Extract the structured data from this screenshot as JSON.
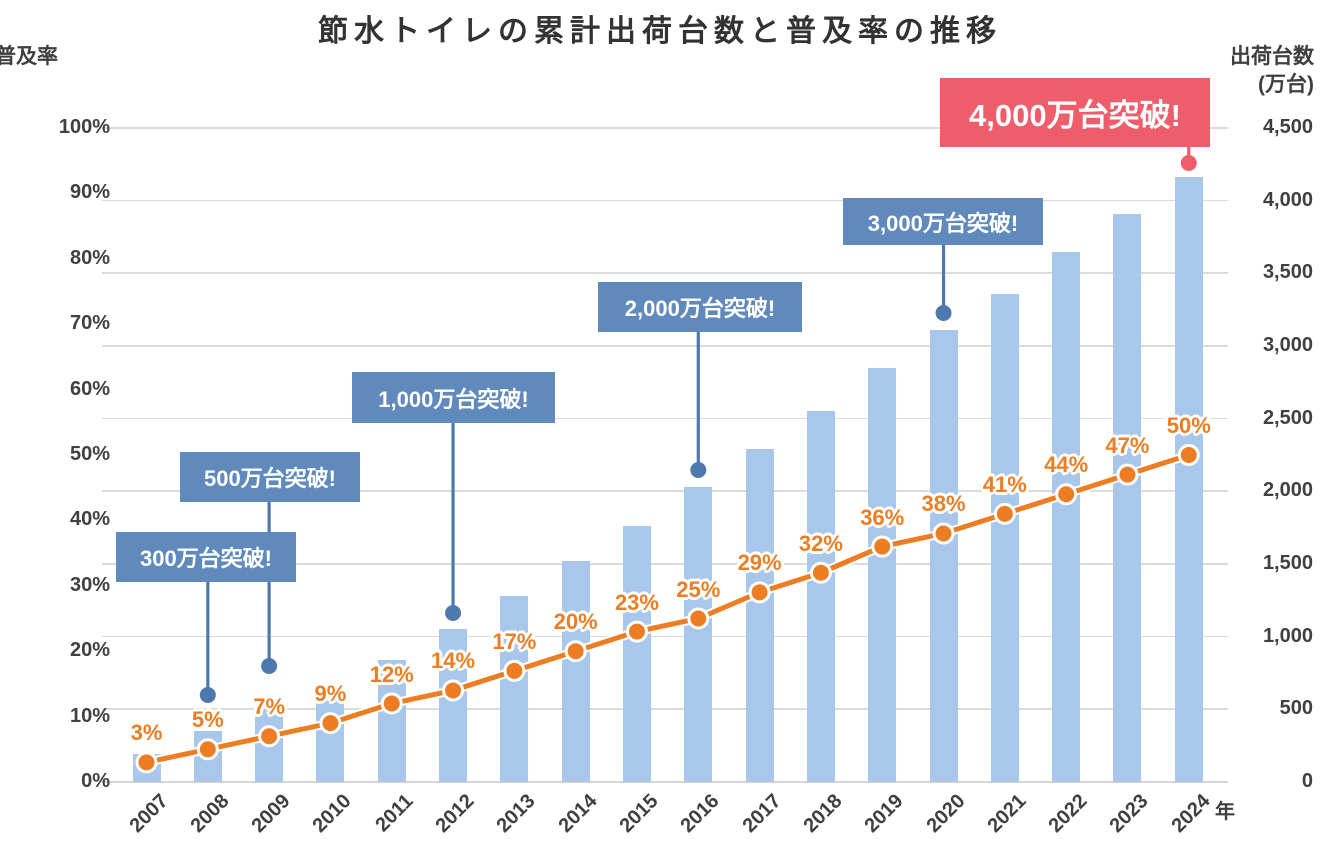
{
  "title": "節水トイレの累計出荷台数と普及率の推移",
  "colors": {
    "bar": "#a9c7ea",
    "line": "#ed7d22",
    "data_label": "#ed7d22",
    "callout_blue": "#6089bc",
    "callout_connector": "#4e79ae",
    "callout_red": "#ee5d6c",
    "grid": "#dbdbdb",
    "text": "#3f3f3f"
  },
  "chart_data": {
    "type": "bar",
    "combo": "bar+line",
    "title": "節水トイレの累計出荷台数と普及率の推移",
    "categories": [
      "2007",
      "2008",
      "2009",
      "2010",
      "2011",
      "2012",
      "2013",
      "2014",
      "2015",
      "2016",
      "2017",
      "2018",
      "2019",
      "2020",
      "2021",
      "2022",
      "2023",
      "2024"
    ],
    "series": [
      {
        "name": "累計出荷台数",
        "type": "bar",
        "axis": "right",
        "values": [
          190,
          350,
          500,
          650,
          840,
          1050,
          1280,
          1520,
          1760,
          2030,
          2290,
          2550,
          2850,
          3110,
          3360,
          3650,
          3910,
          4160
        ],
        "color": "#a9c7ea"
      },
      {
        "name": "普及率",
        "type": "line",
        "axis": "left",
        "values": [
          3,
          5,
          7,
          9,
          12,
          14,
          17,
          20,
          23,
          25,
          29,
          32,
          36,
          38,
          41,
          44,
          47,
          50
        ],
        "labels": [
          "3%",
          "5%",
          "7%",
          "9%",
          "12%",
          "14%",
          "17%",
          "20%",
          "23%",
          "25%",
          "29%",
          "32%",
          "36%",
          "38%",
          "41%",
          "44%",
          "47%",
          "50%"
        ],
        "color": "#ed7d22"
      }
    ],
    "left_axis": {
      "title": "普及率",
      "min": 0,
      "max": 100,
      "ticks": [
        "0%",
        "10%",
        "20%",
        "30%",
        "40%",
        "50%",
        "60%",
        "70%",
        "80%",
        "90%",
        "100%"
      ]
    },
    "right_axis": {
      "title": "出荷台数",
      "unit_label": "(万台)",
      "min": 0,
      "max": 4500,
      "ticks": [
        "0",
        "500",
        "1,000",
        "1,500",
        "2,000",
        "2,500",
        "3,000",
        "3,500",
        "4,000",
        "4,500"
      ]
    },
    "x_axis": {
      "unit_label": "年"
    },
    "grid": true,
    "legend": "none",
    "annotations": [
      {
        "label": "300万台突破!",
        "year": "2008",
        "style": "blue"
      },
      {
        "label": "500万台突破!",
        "year": "2009",
        "style": "blue"
      },
      {
        "label": "1,000万台突破!",
        "year": "2012",
        "style": "blue"
      },
      {
        "label": "2,000万台突破!",
        "year": "2016",
        "style": "blue"
      },
      {
        "label": "3,000万台突破!",
        "year": "2020",
        "style": "blue"
      },
      {
        "label": "4,000万台突破!",
        "year": "2024",
        "style": "red"
      }
    ]
  }
}
